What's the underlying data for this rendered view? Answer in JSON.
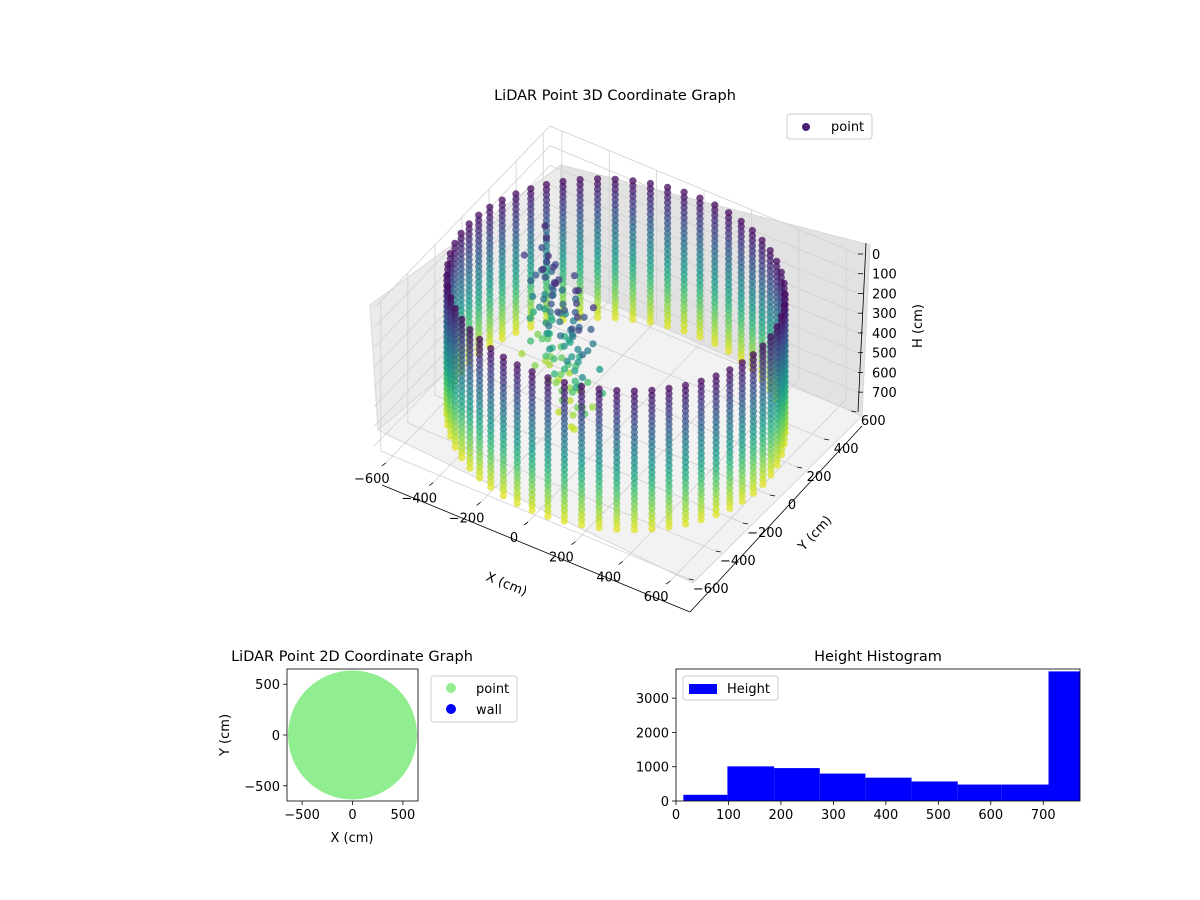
{
  "colors": {
    "viridis_dark": "#440154",
    "viridis_blue": "#3b528b",
    "viridis_teal": "#21918c",
    "viridis_green": "#5ec962",
    "viridis_yellow": "#fde725",
    "point_2d": "#90ee90",
    "wall_2d": "#0000ff",
    "hist_bar": "#0000ff",
    "pane_gray": "#f2f2f2"
  },
  "chart_data": [
    {
      "type": "scatter",
      "projection": "3d",
      "title": "LiDAR Point 3D Coordinate Graph",
      "xlabel": "X (cm)",
      "ylabel": "Y (cm)",
      "zlabel": "H (cm)",
      "xlim": [
        -650,
        650
      ],
      "ylim": [
        -650,
        650
      ],
      "zlim": [
        760,
        0
      ],
      "z_axis_inverted": true,
      "x_ticks": [
        -600,
        -400,
        -200,
        0,
        200,
        400,
        600
      ],
      "y_ticks": [
        -600,
        -400,
        -200,
        0,
        200,
        400,
        600
      ],
      "z_ticks": [
        0,
        100,
        200,
        300,
        400,
        500,
        600,
        700
      ],
      "x_tick_labels": [
        "−600",
        "−400",
        "−200",
        "0",
        "200",
        "400",
        "600"
      ],
      "y_tick_labels": [
        "−600",
        "−400",
        "−200",
        "0",
        "200",
        "400",
        "600"
      ],
      "z_tick_labels": [
        "0",
        "100",
        "200",
        "300",
        "400",
        "500",
        "600",
        "700"
      ],
      "colormap": "viridis",
      "color_by": "height",
      "wall_radius": 620,
      "wall_height_range": [
        0,
        740
      ],
      "legend": {
        "entries": [
          "point"
        ],
        "position": "top-right"
      },
      "grid": true
    },
    {
      "type": "scatter",
      "title": "LiDAR Point 2D Coordinate Graph",
      "xlabel": "X (cm)",
      "ylabel": "Y (cm)",
      "xlim": [
        -650,
        650
      ],
      "ylim": [
        -650,
        650
      ],
      "x_ticks": [
        -500,
        0,
        500
      ],
      "y_ticks": [
        -500,
        0,
        500
      ],
      "x_tick_labels": [
        "−500",
        "0",
        "500"
      ],
      "y_tick_labels": [
        "−500",
        "0",
        "500"
      ],
      "series": [
        {
          "name": "point",
          "shape": "filled disc",
          "radius": 640
        },
        {
          "name": "wall",
          "points": []
        }
      ],
      "legend": {
        "entries": [
          "point",
          "wall"
        ],
        "position": "outside right"
      }
    },
    {
      "type": "bar",
      "subtype": "histogram",
      "title": "Height Histogram",
      "xlabel": "",
      "ylabel": "",
      "xlim": [
        0,
        770
      ],
      "ylim": [
        0,
        3850
      ],
      "x_ticks": [
        0,
        100,
        200,
        300,
        400,
        500,
        600,
        700
      ],
      "y_ticks": [
        0,
        1000,
        2000,
        3000
      ],
      "bin_edges": [
        14,
        98,
        187,
        274,
        361,
        449,
        537,
        620,
        710,
        770
      ],
      "values": [
        180,
        1010,
        960,
        800,
        680,
        570,
        480,
        480,
        3780
      ],
      "series": [
        {
          "name": "Height"
        }
      ],
      "legend": {
        "entries": [
          "Height"
        ],
        "position": "top-left"
      }
    }
  ]
}
